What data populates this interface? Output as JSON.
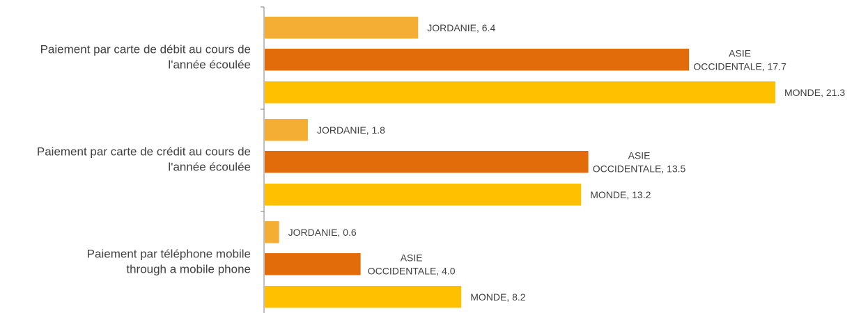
{
  "chart_data": {
    "type": "bar",
    "orientation": "horizontal",
    "categories": [
      [
        "Paiement par carte de débit au cours de",
        "l'année écoulée"
      ],
      [
        "Paiement par carte de crédit au cours de",
        "l'année écoulée"
      ],
      [
        "Paiement par téléphone mobile",
        "through a mobile phone"
      ]
    ],
    "series": [
      {
        "name": "JORDANIE",
        "color": "#F4AE33",
        "values": [
          6.4,
          1.8,
          0.6
        ],
        "labels": [
          [
            "JORDANIE, 6.4"
          ],
          [
            "JORDANIE, 1.8"
          ],
          [
            "JORDANIE, 0.6"
          ]
        ]
      },
      {
        "name": "ASIE OCCIDENTALE",
        "color": "#E36C0A",
        "values": [
          17.7,
          13.5,
          4.0
        ],
        "labels": [
          [
            "ASIE",
            "OCCIDENTALE, 17.7"
          ],
          [
            "ASIE",
            "OCCIDENTALE, 13.5"
          ],
          [
            "ASIE",
            "OCCIDENTALE, 4.0"
          ]
        ]
      },
      {
        "name": "MONDE",
        "color": "#FFC000",
        "values": [
          21.3,
          13.2,
          8.2
        ],
        "labels": [
          [
            "MONDE, 21.3"
          ],
          [
            "MONDE, 13.2"
          ],
          [
            "MONDE, 8.2"
          ]
        ]
      }
    ],
    "xlim": [
      0,
      21.3
    ],
    "grid": false,
    "legend": "none",
    "title": "",
    "xlabel": "",
    "ylabel": ""
  }
}
